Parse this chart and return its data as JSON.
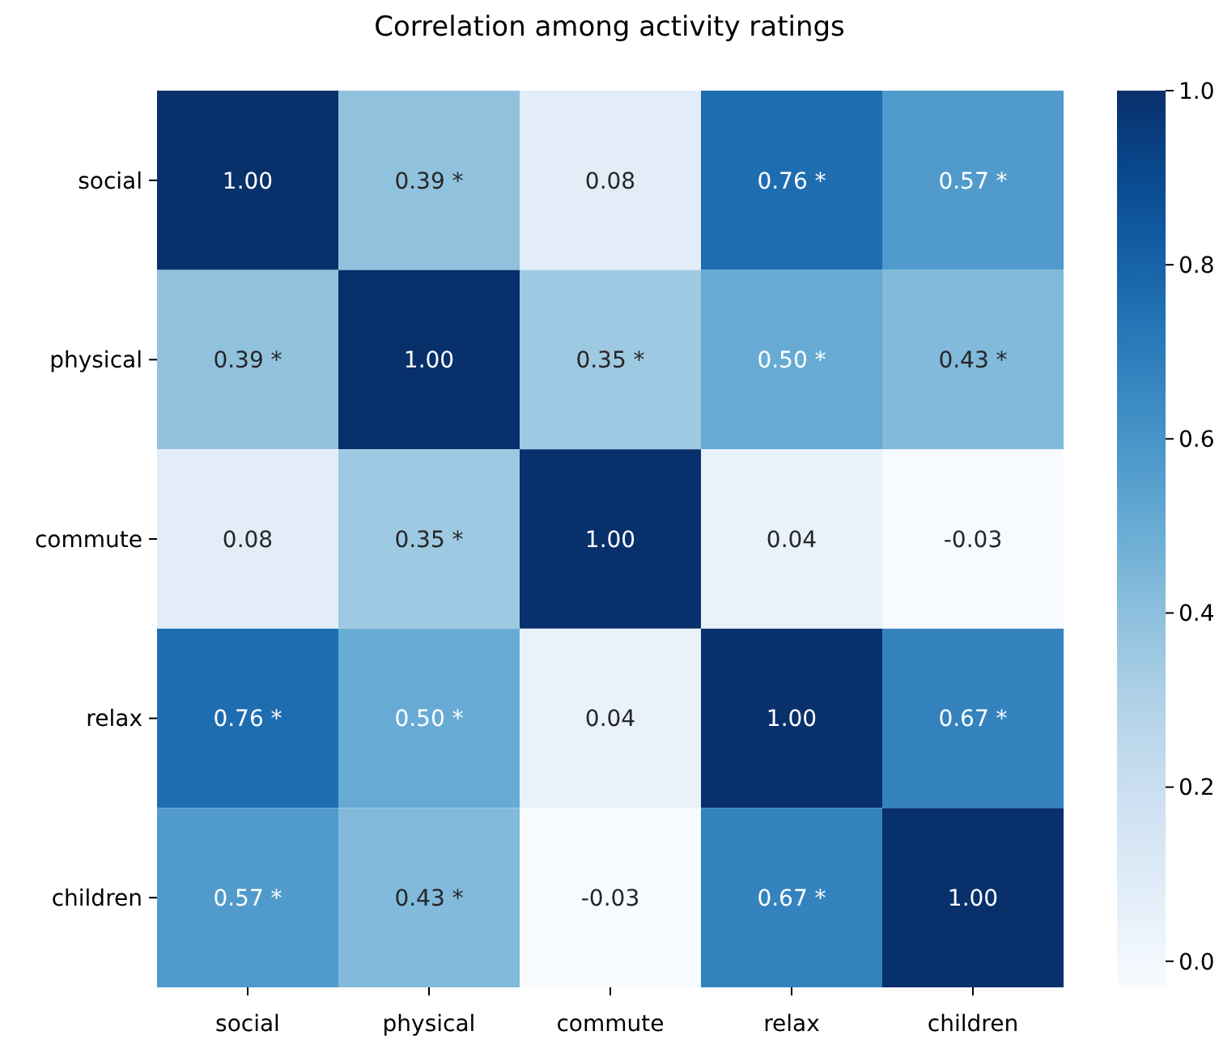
{
  "chart_data": {
    "type": "heatmap",
    "title": "Correlation among activity ratings",
    "categories": [
      "social",
      "physical",
      "commute",
      "relax",
      "children"
    ],
    "y_categories": [
      "social",
      "physical",
      "commute",
      "relax",
      "children"
    ],
    "cells": [
      [
        1.0,
        0.39,
        0.08,
        0.76,
        0.57
      ],
      [
        0.39,
        1.0,
        0.35,
        0.5,
        0.43
      ],
      [
        0.08,
        0.35,
        1.0,
        0.04,
        -0.03
      ],
      [
        0.76,
        0.5,
        0.04,
        1.0,
        0.67
      ],
      [
        0.57,
        0.43,
        -0.03,
        0.67,
        1.0
      ]
    ],
    "cell_labels": [
      [
        "1.00",
        "0.39 *",
        "0.08",
        "0.76 *",
        "0.57 *"
      ],
      [
        "0.39 *",
        "1.00",
        "0.35 *",
        "0.50 *",
        "0.43 *"
      ],
      [
        "0.08",
        "0.35 *",
        "1.00",
        "0.04",
        "-0.03"
      ],
      [
        "0.76 *",
        "0.50 *",
        "0.04",
        "1.00",
        "0.67 *"
      ],
      [
        "0.57 *",
        "0.43 *",
        "-0.03",
        "0.67 *",
        "1.00"
      ]
    ],
    "clim": [
      -0.03,
      1.0
    ],
    "cticks": [
      {
        "value": 0,
        "label": "0.0"
      },
      {
        "value": 0.2,
        "label": "0.2"
      },
      {
        "value": 0.4,
        "label": "0.4"
      },
      {
        "value": 0.6,
        "label": "0.6"
      },
      {
        "value": 0.8,
        "label": "0.8"
      },
      {
        "value": 1.0,
        "label": "1.0"
      }
    ]
  }
}
